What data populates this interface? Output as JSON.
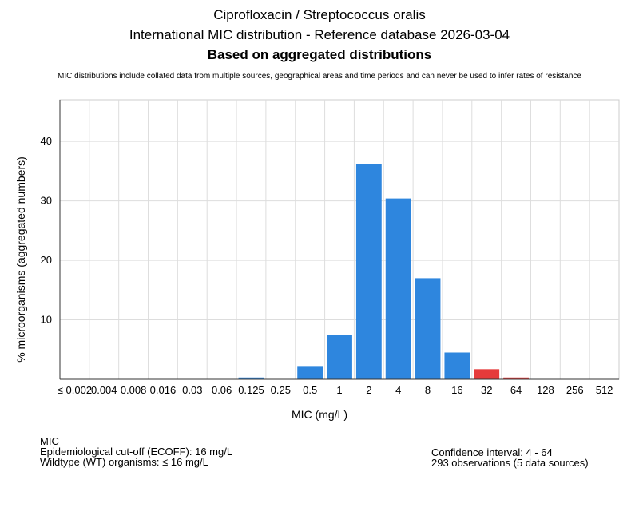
{
  "header": {
    "title_line1": "Ciprofloxacin / Streptococcus oralis",
    "title_line2": "International MIC distribution - Reference database 2026-03-04",
    "title_line3": "Based on aggregated distributions",
    "disclaimer": "MIC distributions include collated data from multiple sources, geographical areas and time periods and can never be used to infer rates of resistance"
  },
  "chart_data": {
    "type": "bar",
    "xlabel": "MIC (mg/L)",
    "ylabel": "% microorganisms (aggregated numbers)",
    "ylim": [
      0,
      47
    ],
    "yticks": [
      10,
      20,
      30,
      40
    ],
    "grid": true,
    "categories": [
      "≤ 0.002",
      "0.004",
      "0.008",
      "0.016",
      "0.03",
      "0.06",
      "0.125",
      "0.25",
      "0.5",
      "1",
      "2",
      "4",
      "8",
      "16",
      "32",
      "64",
      "128",
      "256",
      "512"
    ],
    "values": [
      0,
      0,
      0,
      0,
      0,
      0,
      0.3,
      0,
      2.1,
      7.5,
      36.2,
      30.4,
      17.0,
      4.5,
      1.7,
      0.3,
      0,
      0,
      0
    ],
    "colors": {
      "wildtype": "#2e86de",
      "non_wildtype": "#e63a3a"
    },
    "ecoff_index": 13
  },
  "footer": {
    "mic_label": "MIC",
    "ecoff": "Epidemiological cut-off (ECOFF): 16 mg/L",
    "wildtype": "Wildtype (WT) organisms: ≤ 16 mg/L",
    "confidence_interval": "Confidence interval: 4 - 64",
    "observations": "293 observations (5 data sources)"
  }
}
